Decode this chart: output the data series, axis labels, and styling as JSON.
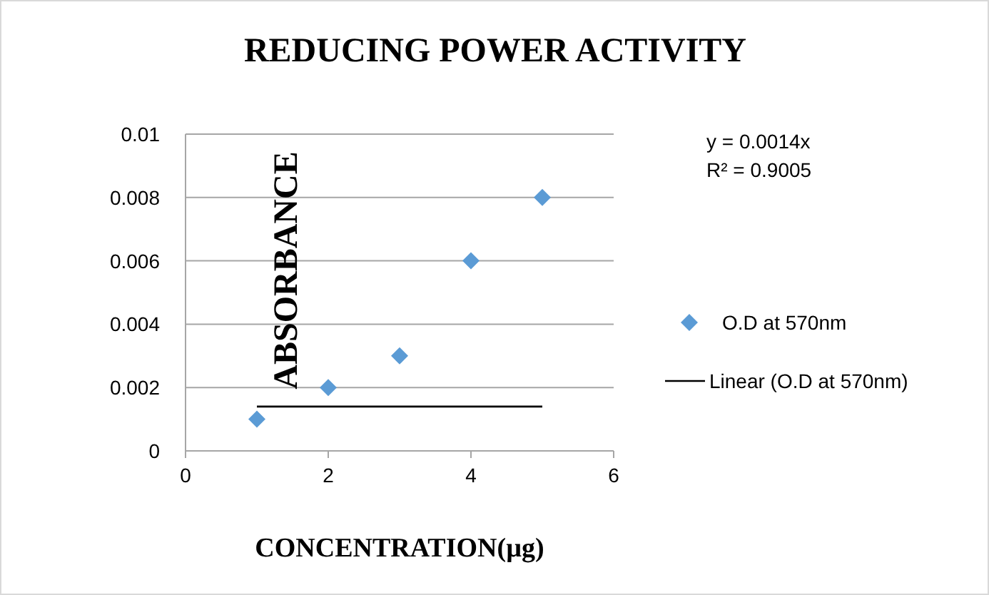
{
  "chart_data": {
    "type": "scatter",
    "title": "REDUCING POWER ACTIVITY",
    "xlabel": "CONCENTRATION(µg)",
    "ylabel": "ABSORBANCE",
    "annotations": [
      "y = 0.0014x",
      "R² = 0.9005"
    ],
    "xlim": [
      0,
      6
    ],
    "xticks": [
      0,
      2,
      4,
      6
    ],
    "ylim": [
      0,
      0.01
    ],
    "yticks": [
      0,
      0.002,
      0.004,
      0.006,
      0.008,
      0.01
    ],
    "grid": "y",
    "legend": "right",
    "series": [
      {
        "name": "O.D at 570nm",
        "color": "#5b9bd5",
        "marker": "diamond",
        "x": [
          1,
          2,
          3,
          4,
          5
        ],
        "values": [
          0.001,
          0.002,
          0.003,
          0.006,
          0.008
        ]
      },
      {
        "name": "Linear (O.D at 570nm)",
        "type": "line",
        "color": "#000000",
        "marker": "none",
        "line_style": "solid",
        "x": [
          1,
          5
        ],
        "values": [
          0.0014,
          0.0014
        ]
      }
    ]
  }
}
